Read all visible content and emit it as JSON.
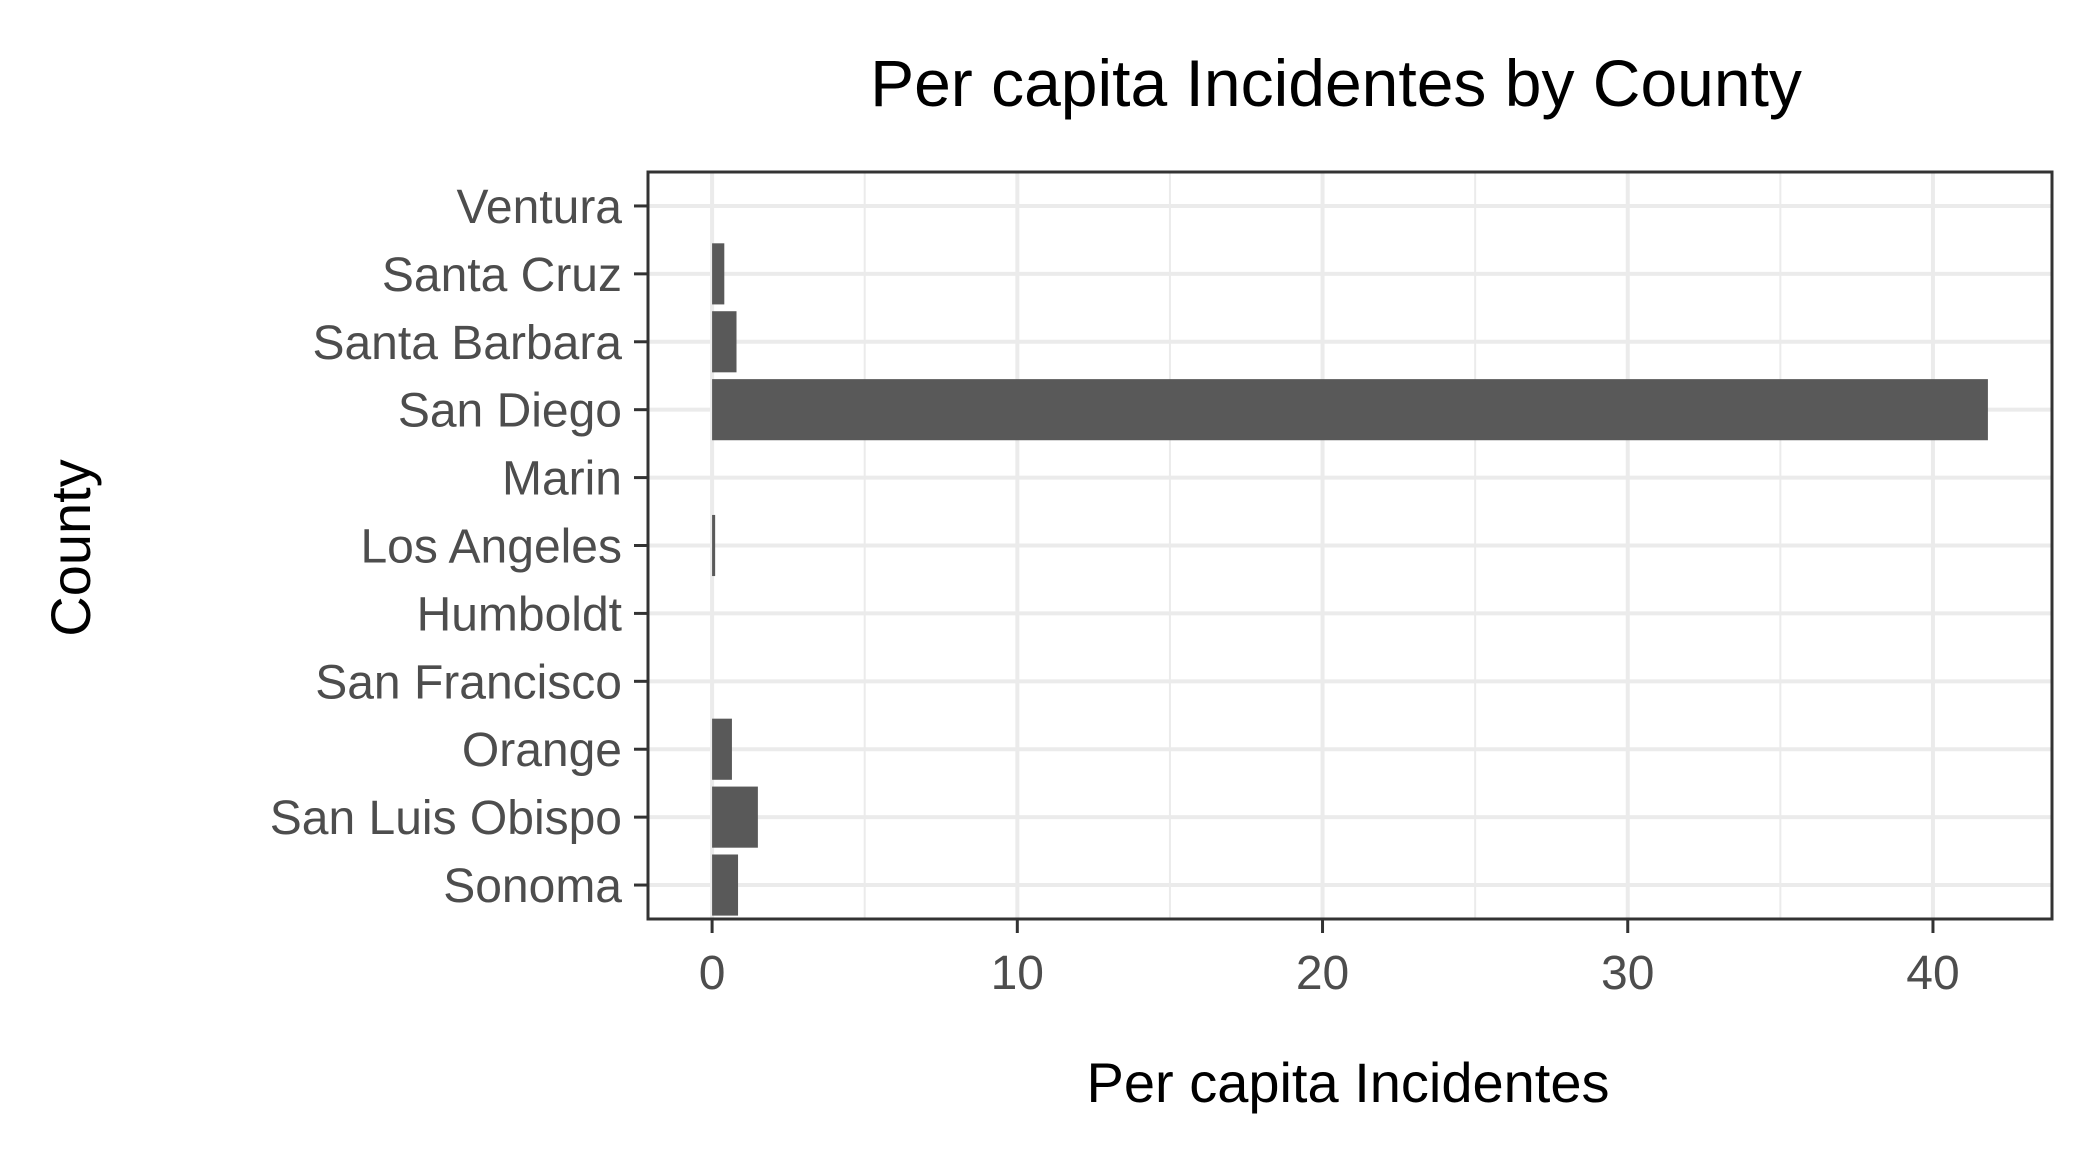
{
  "chart_data": {
    "type": "bar",
    "orientation": "horizontal",
    "title": "Per capita Incidentes by County",
    "xlabel": "Per capita Incidentes",
    "ylabel": "County",
    "categories": [
      "Ventura",
      "Santa Cruz",
      "Santa Barbara",
      "San Diego",
      "Marin",
      "Los Angeles",
      "Humboldt",
      "San Francisco",
      "Orange",
      "San Luis Obispo",
      "Sonoma"
    ],
    "values": [
      0,
      0.4,
      0.8,
      41.8,
      0,
      0.1,
      0,
      0,
      0.65,
      1.5,
      0.85
    ],
    "xlim": [
      -2.1,
      43.9
    ],
    "xticks": [
      0,
      10,
      20,
      30,
      40
    ],
    "xtick_labels": [
      "0",
      "10",
      "20",
      "30",
      "40"
    ],
    "grid": true,
    "bar_color": "#595959",
    "grid_color": "#ebebeb",
    "panel_border_color": "#333333"
  }
}
